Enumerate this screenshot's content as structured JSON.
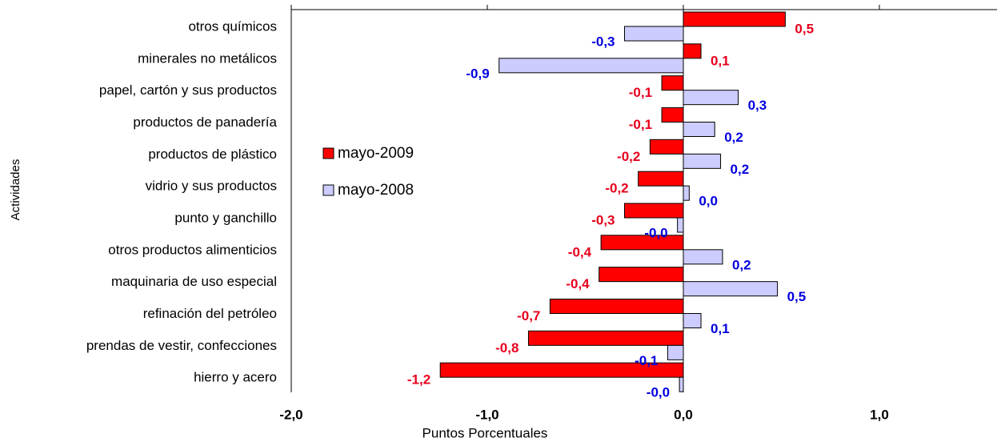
{
  "chart_data": {
    "type": "hbar",
    "xlabel": "Puntos Porcentuales",
    "ylabel": "Actividades",
    "categories": [
      "otros químicos",
      "minerales no metálicos",
      "papel, cartón y sus productos",
      "productos de panadería",
      "productos de plástico",
      "vidrio y sus productos",
      "punto y ganchillo",
      "otros productos alimenticios",
      "maquinaria de uso especial",
      "refinación del petróleo",
      "prendas de vestir, confecciones",
      "hierro y acero"
    ],
    "series": [
      {
        "name": "mayo-2009",
        "color": "#ff0000",
        "label_color": "#e8001c",
        "values": [
          0.52,
          0.09,
          -0.11,
          -0.11,
          -0.17,
          -0.23,
          -0.3,
          -0.42,
          -0.43,
          -0.68,
          -0.79,
          -1.24
        ],
        "value_labels": [
          "0,5",
          "0,1",
          "-0,1",
          "-0,1",
          "-0,2",
          "-0,2",
          "-0,3",
          "-0,4",
          "-0,4",
          "-0,7",
          "-0,8",
          "-1,2"
        ]
      },
      {
        "name": "mayo-2008",
        "color": "#ccccff",
        "label_color": "#0000e0",
        "values": [
          -0.3,
          -0.94,
          0.28,
          0.16,
          0.19,
          0.03,
          -0.03,
          0.2,
          0.48,
          0.09,
          -0.08,
          -0.02
        ],
        "value_labels": [
          "-0,3",
          "-0,9",
          "0,3",
          "0,2",
          "0,2",
          "0,0",
          "-0,0",
          "0,2",
          "0,5",
          "0,1",
          "-0,1",
          "-0,0"
        ]
      }
    ],
    "xlim": [
      -2,
      1.6
    ],
    "xticks": [
      {
        "value": -2,
        "label": "-2,0"
      },
      {
        "value": -1,
        "label": "-1,0"
      },
      {
        "value": 0,
        "label": "0,0"
      },
      {
        "value": 1,
        "label": "1,0"
      }
    ]
  }
}
